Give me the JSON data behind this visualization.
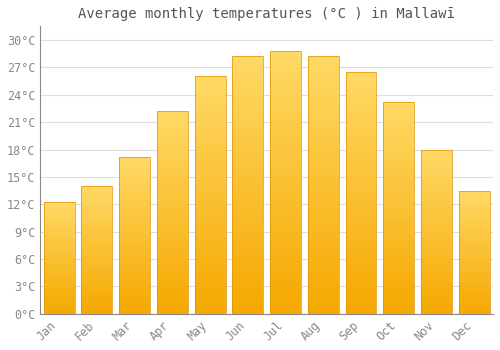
{
  "title": "Average monthly temperatures (°C ) in Mallawī",
  "months": [
    "Jan",
    "Feb",
    "Mar",
    "Apr",
    "May",
    "Jun",
    "Jul",
    "Aug",
    "Sep",
    "Oct",
    "Nov",
    "Dec"
  ],
  "values": [
    12.2,
    14.0,
    17.2,
    22.2,
    26.0,
    28.2,
    28.8,
    28.2,
    26.5,
    23.2,
    18.0,
    13.5
  ],
  "bar_color_bottom": "#F5A800",
  "bar_color_top": "#FFD966",
  "bar_edge_color": "#E09000",
  "background_color": "#FFFFFF",
  "grid_color": "#DDDDDD",
  "yticks": [
    0,
    3,
    6,
    9,
    12,
    15,
    18,
    21,
    24,
    27,
    30
  ],
  "ylim": [
    0,
    31.5
  ],
  "title_fontsize": 10,
  "tick_fontsize": 8.5,
  "tick_color": "#888888",
  "title_color": "#555555",
  "bar_width": 0.82
}
